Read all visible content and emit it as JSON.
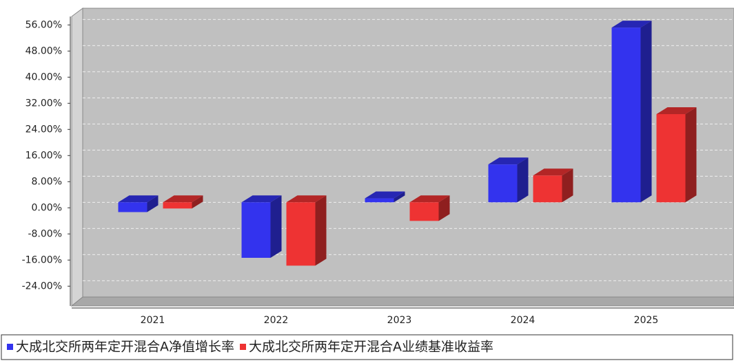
{
  "chart_data": {
    "type": "bar3d",
    "categories": [
      "2021",
      "2022",
      "2023",
      "2024",
      "2025"
    ],
    "series": [
      {
        "name": "大成北交所两年定开混合A净值增长率",
        "color": "#3333ee",
        "values": [
          -3.0,
          -17.0,
          1.2,
          11.6,
          53.5
        ]
      },
      {
        "name": "大成北交所两年定开混合A业绩基准收益率",
        "color": "#ee3333",
        "values": [
          -1.9,
          -19.4,
          -5.7,
          8.2,
          27.0
        ]
      }
    ],
    "ylim": [
      -29,
      59
    ],
    "yticks": [
      {
        "value": -24,
        "label": "-24.00%"
      },
      {
        "value": -16,
        "label": "-16.00%"
      },
      {
        "value": -8,
        "label": "-8.00%"
      },
      {
        "value": 0,
        "label": "0.00%"
      },
      {
        "value": 8,
        "label": "8.00%"
      },
      {
        "value": 16,
        "label": "16.00%"
      },
      {
        "value": 24,
        "label": "24.00%"
      },
      {
        "value": 32,
        "label": "32.00%"
      },
      {
        "value": 40,
        "label": "40.00%"
      },
      {
        "value": 48,
        "label": "48.00%"
      },
      {
        "value": 56,
        "label": "56.00%"
      }
    ],
    "grid": true,
    "legend": "bottom"
  }
}
